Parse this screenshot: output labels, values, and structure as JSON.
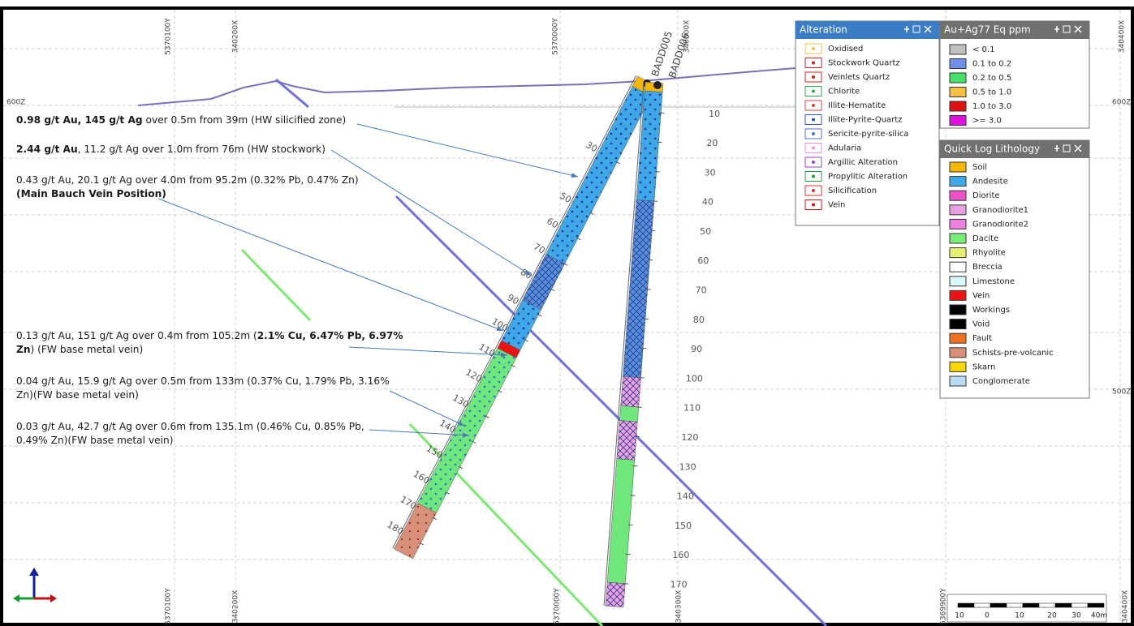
{
  "grid_labels_top": [
    "5370100Y",
    "340200X",
    "5370000Y",
    "340300X",
    "340400X"
  ],
  "grid_labels_bottom": [
    "5370100Y",
    "340200X",
    "5370000Y",
    "340300X",
    "5369900Y",
    "340400X"
  ],
  "elevation_labels": [
    "600Z",
    "600Z",
    "500Z"
  ],
  "drillholes": [
    {
      "name": "BADD005",
      "depth_labels": [
        30,
        50,
        60,
        70,
        80,
        90,
        100,
        110,
        120,
        130,
        140,
        150,
        160,
        170,
        180
      ]
    },
    {
      "name": "BADD006",
      "depth_labels": [
        10,
        20,
        30,
        40,
        50,
        60,
        70,
        80,
        90,
        100,
        110,
        120,
        130,
        140,
        150,
        160,
        170
      ]
    }
  ],
  "annotations": [
    [
      {
        "text": "0.98 g/t Au, 145 g/t Ag",
        "bold": true
      },
      {
        "text": " over 0.5m from 39m (HW silicified zone)",
        "bold": false
      }
    ],
    [
      {
        "text": "2.44 g/t Au",
        "bold": true
      },
      {
        "text": ", 11.2 g/t Ag over 1.0m from 76m (HW stockwork)",
        "bold": false
      }
    ],
    [
      {
        "text": "0.43 g/t Au, 20.1 g/t Ag over 4.0m from 95.2m (0.32% Pb, 0.47% Zn) ",
        "bold": false
      },
      {
        "text": "(Main Bauch Vein Position)",
        "bold": true
      }
    ],
    [
      {
        "text": "0.13 g/t Au, 151 g/t Ag over 0.4m from 105.2m (",
        "bold": false
      },
      {
        "text": "2.1% Cu, 6.47% Pb, 6.97% Zn",
        "bold": true
      },
      {
        "text": ") (FW base metal vein)",
        "bold": false
      }
    ],
    [
      {
        "text": "0.04 g/t Au, 15.9 g/t Ag over 0.5m from 133m (0.37% Cu, 1.79% Pb, 3.16% Zn)(FW base metal vein)",
        "bold": false
      }
    ],
    [
      {
        "text": "0.03 g/t Au, 42.7 g/t Ag over 0.6m from 135.1m (0.46% Cu, 0.85% Pb, 0.49% Zn)(FW base metal vein)",
        "bold": false
      }
    ]
  ],
  "legends": {
    "alteration": {
      "title": "Alteration",
      "items": [
        {
          "label": "Oxidised",
          "color": "#f5c242"
        },
        {
          "label": "Stockwork Quartz",
          "color": "#d42020"
        },
        {
          "label": "Veinlets Quartz",
          "color": "#d42020"
        },
        {
          "label": "Chlorite",
          "color": "#2fa84a"
        },
        {
          "label": "Illite-Hematite",
          "color": "#e04040"
        },
        {
          "label": "Illite-Pyrite-Quartz",
          "color": "#3050d0"
        },
        {
          "label": "Sericite-pyrite-silica",
          "color": "#5070d8"
        },
        {
          "label": "Adularia",
          "color": "#f090d8"
        },
        {
          "label": "Argillic Alteration",
          "color": "#a040c0"
        },
        {
          "label": "Propylitic Alteration",
          "color": "#20a040"
        },
        {
          "label": "Silicification",
          "color": "#e03030"
        },
        {
          "label": "Vein",
          "color": "#e01010"
        }
      ]
    },
    "grade": {
      "title": "Au+Ag77 Eq ppm",
      "items": [
        {
          "label": "< 0.1",
          "color": "#c0c0c0"
        },
        {
          "label": "0.1 to 0.2",
          "color": "#6f8fe8"
        },
        {
          "label": "0.2 to 0.5",
          "color": "#46e06a"
        },
        {
          "label": "0.5 to 1.0",
          "color": "#f5c043"
        },
        {
          "label": "1.0 to 3.0",
          "color": "#e01010"
        },
        {
          "label": ">= 3.0",
          "color": "#e010e0"
        }
      ]
    },
    "lithology": {
      "title": "Quick Log Lithology",
      "items": [
        {
          "label": "Soil",
          "color": "#f5b700"
        },
        {
          "label": "Andesite",
          "color": "#3fa9e8"
        },
        {
          "label": "Diorite",
          "color": "#f050c8"
        },
        {
          "label": "Granodiorite1",
          "color": "#e8a0e0"
        },
        {
          "label": "Granodiorite2",
          "color": "#f080e0"
        },
        {
          "label": "Dacite",
          "color": "#78f078"
        },
        {
          "label": "Rhyolite",
          "color": "#e8f070"
        },
        {
          "label": "Breccia",
          "color": "#ffffff"
        },
        {
          "label": "Limestone",
          "color": "#d8f8f8"
        },
        {
          "label": "Vein",
          "color": "#ee1111"
        },
        {
          "label": "Workings",
          "color": "#000000"
        },
        {
          "label": "Void",
          "color": "#000000"
        },
        {
          "label": "Fault",
          "color": "#f07020"
        },
        {
          "label": "Schists-pre-volcanic",
          "color": "#d89078"
        },
        {
          "label": "Skarn",
          "color": "#f8d800"
        },
        {
          "label": "Conglomerate",
          "color": "#b8dcf0"
        }
      ]
    }
  },
  "scale_bar": [
    "10",
    "0",
    "10",
    "20",
    "30",
    "40m"
  ]
}
